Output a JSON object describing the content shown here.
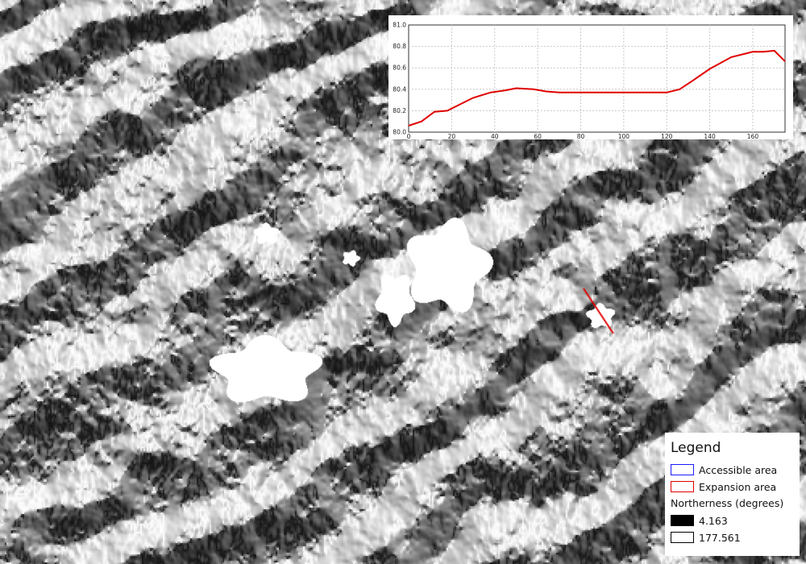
{
  "map": {
    "profile_line_color": "#e00000"
  },
  "legend": {
    "title": "Legend",
    "items": [
      {
        "label": "Accessible area",
        "outline": "#1a1aff"
      },
      {
        "label": "Expansion area",
        "outline": "#e00000"
      }
    ],
    "raster_label": "Northerness (degrees)",
    "raster_items": [
      {
        "label": "4.163",
        "fill": "#000000"
      },
      {
        "label": "177.561",
        "fill": "#ffffff"
      }
    ]
  },
  "chart_data": {
    "type": "line",
    "x_ticks": [
      "0",
      "20",
      "40",
      "60",
      "80",
      "100",
      "120",
      "140",
      "160"
    ],
    "y_ticks": [
      "80.0",
      "80.2",
      "80.4",
      "80.6",
      "80.8",
      "81.0"
    ],
    "xlim": [
      0,
      175
    ],
    "ylim": [
      80.0,
      81.0
    ],
    "grid": true,
    "series": [
      {
        "color": "#e00000",
        "x": [
          0,
          6,
          12,
          18,
          24,
          30,
          38,
          45,
          50,
          58,
          64,
          70,
          80,
          90,
          100,
          110,
          120,
          126,
          132,
          140,
          150,
          160,
          165,
          170,
          175
        ],
        "y": [
          80.06,
          80.1,
          80.19,
          80.2,
          80.26,
          80.32,
          80.37,
          80.39,
          80.41,
          80.4,
          80.38,
          80.37,
          80.37,
          80.37,
          80.37,
          80.37,
          80.37,
          80.4,
          80.48,
          80.59,
          80.7,
          80.75,
          80.75,
          80.76,
          80.66
        ]
      }
    ]
  }
}
